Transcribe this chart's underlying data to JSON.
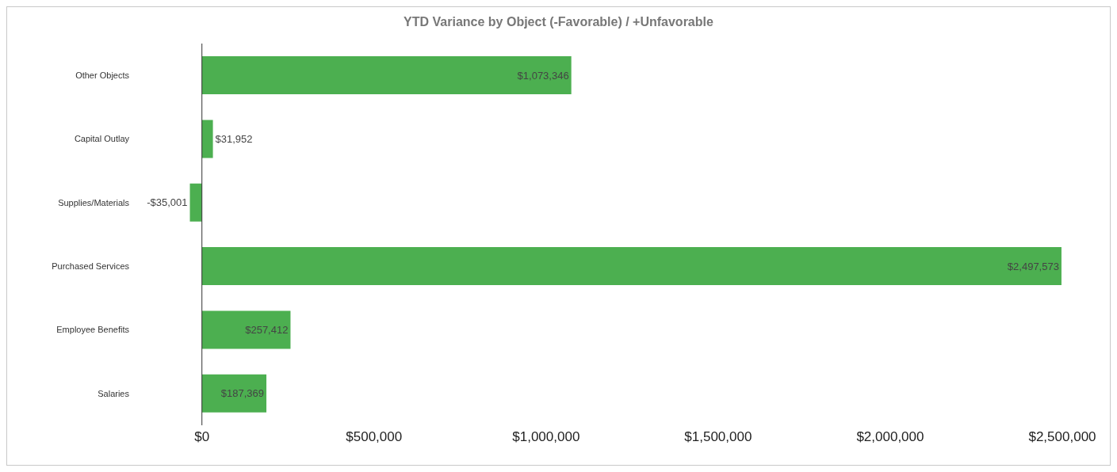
{
  "chart_data": {
    "type": "bar",
    "orientation": "horizontal",
    "title": "YTD Variance by Object  (-Favorable) / +Unfavorable",
    "categories": [
      "Other Objects",
      "Capital Outlay",
      "Supplies/Materials",
      "Purchased Services",
      "Employee Benefits",
      "Salaries"
    ],
    "values": [
      1073346,
      31952,
      -35001,
      2497573,
      257412,
      187369
    ],
    "value_labels": [
      "$1,073,346",
      "$31,952",
      "-$35,001",
      "$2,497,573",
      "$257,412",
      "$187,369"
    ],
    "color": "#4caf50",
    "xlim": [
      -50000,
      2500000
    ],
    "ref_lines": [
      {
        "axis": "x",
        "value": 0,
        "color": "#333333"
      }
    ],
    "xticks": [
      {
        "value": 0,
        "label": "$0"
      },
      {
        "value": 500000,
        "label": "$500,000"
      },
      {
        "value": 1000000,
        "label": "$1,000,000"
      },
      {
        "value": 1500000,
        "label": "$1,500,000"
      },
      {
        "value": 2000000,
        "label": "$2,000,000"
      },
      {
        "value": 2500000,
        "label": "$2,500,000"
      }
    ],
    "grid": false,
    "legend": false
  }
}
